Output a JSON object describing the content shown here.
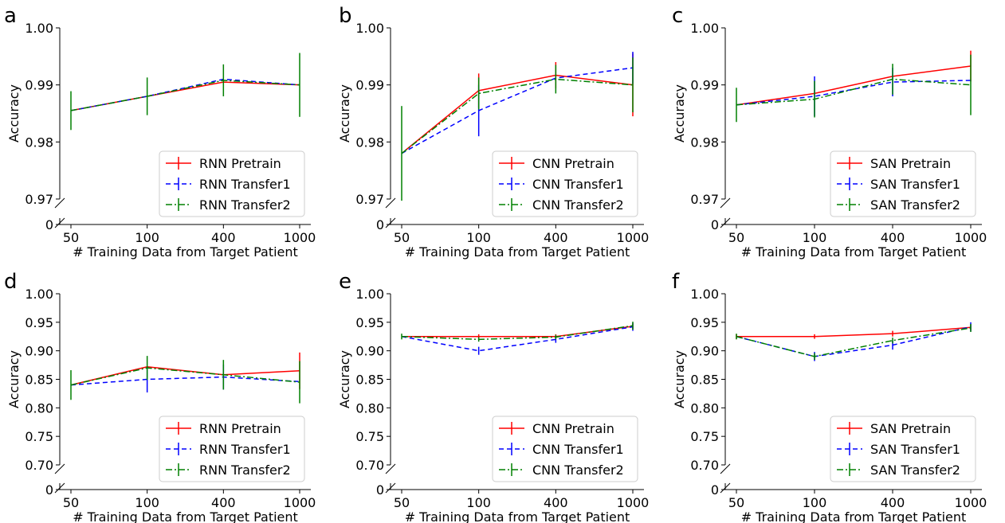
{
  "chart_data": [
    {
      "panel": "a",
      "type": "line",
      "x": [
        "50",
        "100",
        "400",
        "1000"
      ],
      "xlabel": "# Training Data from Target Patient",
      "ylabel": "Accuracy",
      "ylim": [
        0.97,
        1.0
      ],
      "yticks": [
        "0.97",
        "0.98",
        "0.99",
        "1.00"
      ],
      "broken_axis_zero": "0",
      "legend_position": "bottom-right",
      "series": [
        {
          "name": "RNN Pretrain",
          "values": [
            0.9855,
            0.988,
            0.9905,
            0.99
          ],
          "err": [
            0,
            0,
            0,
            0
          ]
        },
        {
          "name": "RNN Transfer1",
          "values": [
            0.9855,
            0.988,
            0.991,
            0.99
          ],
          "err": [
            0,
            0,
            0,
            0
          ]
        },
        {
          "name": "RNN Transfer2",
          "values": [
            0.9855,
            0.988,
            0.9908,
            0.99
          ],
          "err": [
            0.0034,
            0.0033,
            0.0028,
            0.0056
          ]
        }
      ]
    },
    {
      "panel": "b",
      "type": "line",
      "x": [
        "50",
        "100",
        "400",
        "1000"
      ],
      "xlabel": "# Training Data from Target Patient",
      "ylabel": "Accuracy",
      "ylim": [
        0.97,
        1.0
      ],
      "yticks": [
        "0.97",
        "0.98",
        "0.99",
        "1.00"
      ],
      "broken_axis_zero": "0",
      "legend_position": "bottom-right",
      "series": [
        {
          "name": "CNN Pretrain",
          "values": [
            0.978,
            0.989,
            0.9917,
            0.99
          ],
          "err": [
            0,
            0.003,
            0.0023,
            0.0055
          ]
        },
        {
          "name": "CNN Transfer1",
          "values": [
            0.978,
            0.9855,
            0.9912,
            0.993
          ],
          "err": [
            0,
            0.0045,
            0,
            0.0028
          ]
        },
        {
          "name": "CNN Transfer2",
          "values": [
            0.978,
            0.9885,
            0.991,
            0.99
          ],
          "err": [
            0.0083,
            0.0028,
            0.0025,
            0.0048
          ]
        }
      ]
    },
    {
      "panel": "c",
      "type": "line",
      "x": [
        "50",
        "100",
        "400",
        "1000"
      ],
      "xlabel": "# Training Data from Target Patient",
      "ylabel": "Accuracy",
      "ylim": [
        0.97,
        1.0
      ],
      "yticks": [
        "0.97",
        "0.98",
        "0.99",
        "1.00"
      ],
      "broken_axis_zero": "0",
      "legend_position": "bottom-right",
      "series": [
        {
          "name": "SAN Pretrain",
          "values": [
            0.9865,
            0.9885,
            0.9915,
            0.9933
          ],
          "err": [
            0,
            0,
            0,
            0.0027
          ]
        },
        {
          "name": "SAN Transfer1",
          "values": [
            0.9865,
            0.988,
            0.9905,
            0.9908
          ],
          "err": [
            0,
            0.0035,
            0.0025,
            0
          ]
        },
        {
          "name": "SAN Transfer2",
          "values": [
            0.9865,
            0.9875,
            0.991,
            0.99
          ],
          "err": [
            0.003,
            0.0032,
            0.0027,
            0.0053
          ]
        }
      ]
    },
    {
      "panel": "d",
      "type": "line",
      "x": [
        "50",
        "100",
        "400",
        "1000"
      ],
      "xlabel": "# Training Data from Target Patient",
      "ylabel": "Accuracy",
      "ylim": [
        0.7,
        1.0
      ],
      "yticks": [
        "0.70",
        "0.75",
        "0.80",
        "0.85",
        "0.90",
        "0.95",
        "1.00"
      ],
      "broken_axis_zero": "0",
      "legend_position": "bottom-right",
      "series": [
        {
          "name": "RNN Pretrain",
          "values": [
            0.84,
            0.872,
            0.858,
            0.865
          ],
          "err": [
            0,
            0,
            0,
            0.032
          ]
        },
        {
          "name": "RNN Transfer1",
          "values": [
            0.84,
            0.85,
            0.854,
            0.846
          ],
          "err": [
            0,
            0.023,
            0.022,
            0
          ]
        },
        {
          "name": "RNN Transfer2",
          "values": [
            0.84,
            0.87,
            0.858,
            0.845
          ],
          "err": [
            0.026,
            0.021,
            0.026,
            0.037
          ]
        }
      ]
    },
    {
      "panel": "e",
      "type": "line",
      "x": [
        "50",
        "100",
        "400",
        "1000"
      ],
      "xlabel": "# Training Data from Target Patient",
      "ylabel": "Accuracy",
      "ylim": [
        0.7,
        1.0
      ],
      "yticks": [
        "0.70",
        "0.75",
        "0.80",
        "0.85",
        "0.90",
        "0.95",
        "1.00"
      ],
      "broken_axis_zero": "0",
      "legend_position": "bottom-right",
      "series": [
        {
          "name": "CNN Pretrain",
          "values": [
            0.925,
            0.925,
            0.925,
            0.943
          ],
          "err": [
            0,
            0.004,
            0.004,
            0.005
          ]
        },
        {
          "name": "CNN Transfer1",
          "values": [
            0.925,
            0.9,
            0.92,
            0.942
          ],
          "err": [
            0,
            0.007,
            0.006,
            0.007
          ]
        },
        {
          "name": "CNN Transfer2",
          "values": [
            0.925,
            0.92,
            0.924,
            0.944
          ],
          "err": [
            0.005,
            0.004,
            0.004,
            0.007
          ]
        }
      ]
    },
    {
      "panel": "f",
      "type": "line",
      "x": [
        "50",
        "100",
        "400",
        "1000"
      ],
      "xlabel": "# Training Data from Target Patient",
      "ylabel": "Accuracy",
      "ylim": [
        0.7,
        1.0
      ],
      "yticks": [
        "0.70",
        "0.75",
        "0.80",
        "0.85",
        "0.90",
        "0.95",
        "1.00"
      ],
      "broken_axis_zero": "0",
      "legend_position": "bottom-right",
      "series": [
        {
          "name": "SAN Pretrain",
          "values": [
            0.925,
            0.925,
            0.93,
            0.941
          ],
          "err": [
            0.004,
            0.004,
            0.005,
            0.005
          ]
        },
        {
          "name": "SAN Transfer1",
          "values": [
            0.925,
            0.89,
            0.91,
            0.942
          ],
          "err": [
            0,
            0.008,
            0.008,
            0.008
          ]
        },
        {
          "name": "SAN Transfer2",
          "values": [
            0.925,
            0.89,
            0.918,
            0.94
          ],
          "err": [
            0.005,
            0.006,
            0.005,
            0.007
          ]
        }
      ]
    }
  ],
  "style": {
    "series_colors": [
      "#ff0000",
      "#0000ff",
      "#008000"
    ],
    "series_dashes": [
      "solid",
      "dashed",
      "dashdot"
    ]
  }
}
